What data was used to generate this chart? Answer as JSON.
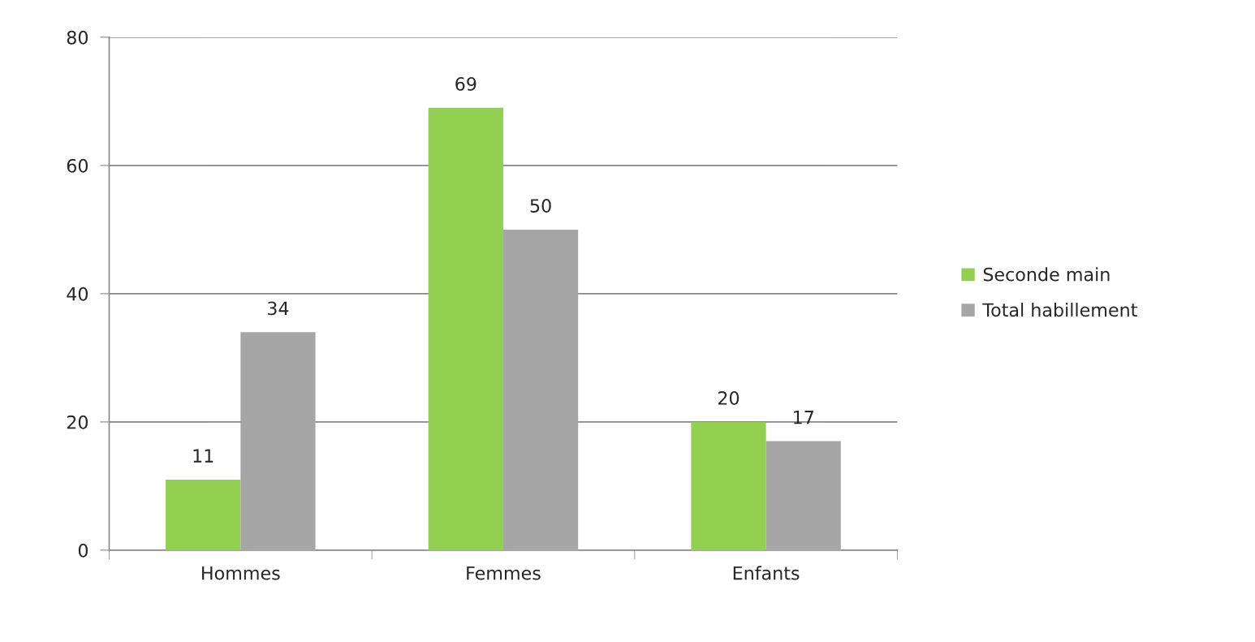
{
  "chart_data": {
    "type": "bar",
    "categories": [
      "Hommes",
      "Femmes",
      "Enfants"
    ],
    "series": [
      {
        "name": "Seconde main",
        "color": "#92d050",
        "values": [
          11,
          69,
          20
        ]
      },
      {
        "name": "Total habillement",
        "color": "#a6a6a6",
        "values": [
          34,
          50,
          17
        ]
      }
    ],
    "ylim": [
      0,
      80
    ],
    "yticks": [
      0,
      20,
      40,
      60,
      80
    ],
    "grid": "y",
    "legend": "right",
    "data_labels": true
  }
}
